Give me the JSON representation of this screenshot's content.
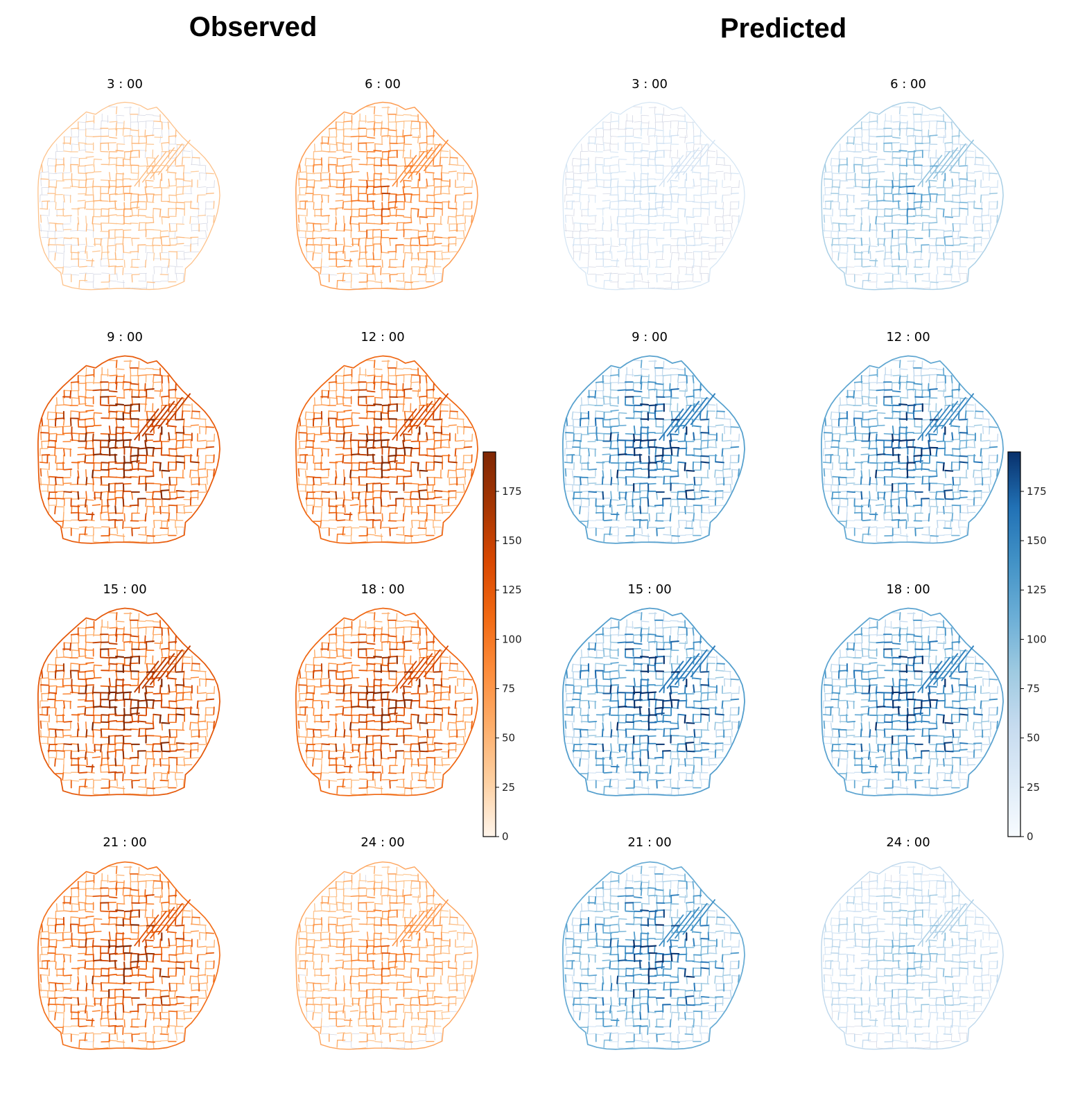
{
  "figure": {
    "groups": [
      {
        "id": "observed",
        "title": "Observed",
        "colormap": [
          "#fff5eb",
          "#fdd0a2",
          "#fdae6b",
          "#fd8d3c",
          "#f16913",
          "#d94801",
          "#a63603",
          "#7f2704"
        ],
        "panels": [
          {
            "label": "3 : 00",
            "level": 0.18
          },
          {
            "label": "6 : 00",
            "level": 0.42
          },
          {
            "label": "9 : 00",
            "level": 0.8
          },
          {
            "label": "12 : 00",
            "level": 0.74
          },
          {
            "label": "15 : 00",
            "level": 0.82
          },
          {
            "label": "18 : 00",
            "level": 0.74
          },
          {
            "label": "21 : 00",
            "level": 0.68
          },
          {
            "label": "24 : 00",
            "level": 0.36
          }
        ]
      },
      {
        "id": "predicted",
        "title": "Predicted",
        "colormap": [
          "#f7fbff",
          "#deebf7",
          "#c6dbef",
          "#9ecae1",
          "#6baed6",
          "#4292c6",
          "#2171b5",
          "#08306b"
        ],
        "panels": [
          {
            "label": "3 : 00",
            "level": 0.16
          },
          {
            "label": "6 : 00",
            "level": 0.44
          },
          {
            "label": "9 : 00",
            "level": 0.82
          },
          {
            "label": "12 : 00",
            "level": 0.78
          },
          {
            "label": "15 : 00",
            "level": 0.84
          },
          {
            "label": "18 : 00",
            "level": 0.8
          },
          {
            "label": "21 : 00",
            "level": 0.74
          },
          {
            "label": "24 : 00",
            "level": 0.34
          }
        ]
      }
    ],
    "colorbar": {
      "min": 0,
      "max": 195,
      "ticks": [
        0,
        25,
        50,
        75,
        100,
        125,
        150,
        175
      ]
    }
  }
}
